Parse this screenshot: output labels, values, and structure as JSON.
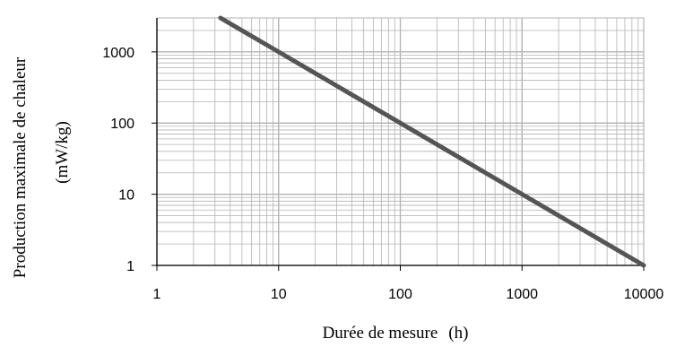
{
  "chart_data": {
    "type": "line",
    "x_scale": "log",
    "y_scale": "log",
    "xlim": [
      1,
      10000
    ],
    "ylim": [
      1,
      3000
    ],
    "x_ticks": [
      "1",
      "10",
      "100",
      "1000",
      "10000"
    ],
    "y_ticks": [
      "1",
      "10",
      "100",
      "1000"
    ],
    "grid": true,
    "xlabel_text": "Durée de mesure",
    "xlabel_unit": "(h)",
    "ylabel_line1": "Production maximale de chaleur",
    "ylabel_line2": "(mW/kg)",
    "series": [
      {
        "x": [
          3.33,
          10,
          100,
          1000,
          10000
        ],
        "y": [
          3000,
          1000,
          100,
          10,
          1
        ]
      }
    ],
    "colors": {
      "line": "#555555",
      "grid": "#b3b3b3",
      "axis": "#000000"
    }
  }
}
